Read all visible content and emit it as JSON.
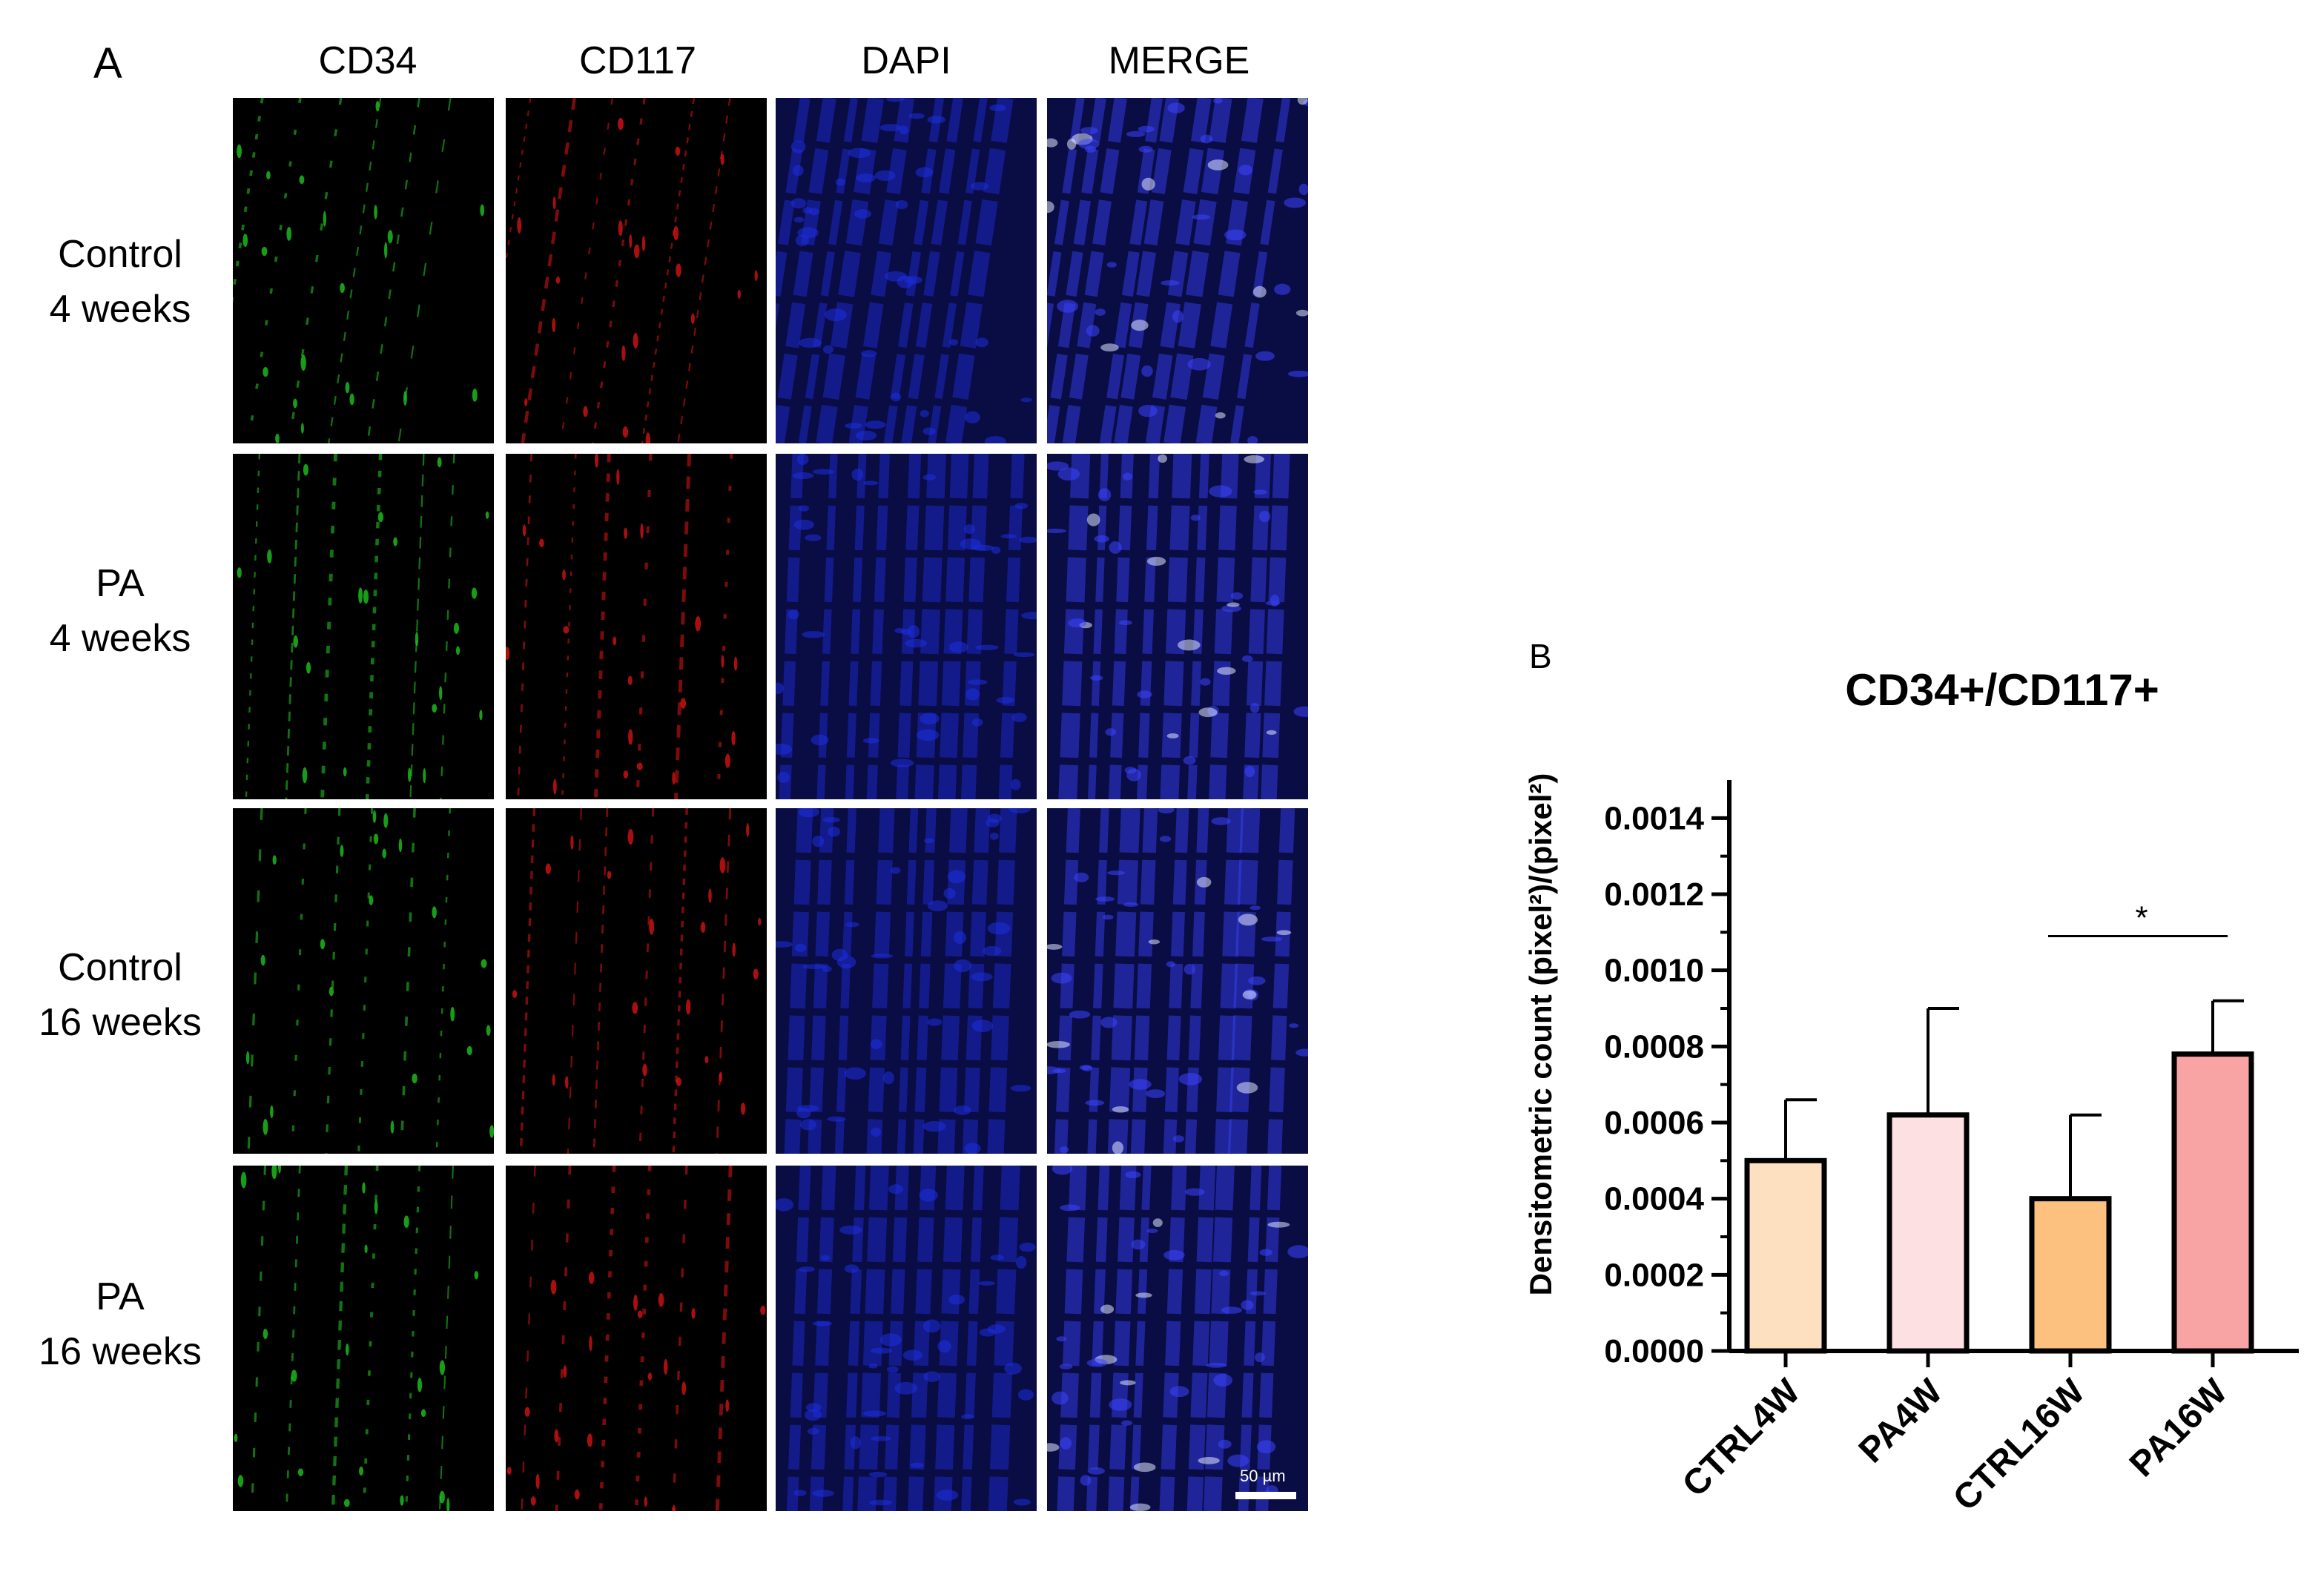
{
  "panel_a": {
    "letter": "A",
    "columns": [
      "CD34",
      "CD117",
      "DAPI",
      "MERGE"
    ],
    "rows": [
      {
        "line1": "Control",
        "line2": "4 weeks"
      },
      {
        "line1": "PA",
        "line2": "4 weeks"
      },
      {
        "line1": "Control",
        "line2": "16 weeks"
      },
      {
        "line1": "PA",
        "line2": "16 weeks"
      }
    ],
    "scale_bar": "50 µm",
    "channel_colors": {
      "CD34": "#1fd11f",
      "CD117": "#e11414",
      "DAPI": "#1e2ee0",
      "MERGE": "#3a44ff"
    }
  },
  "panel_b": {
    "letter": "B"
  },
  "chart_data": {
    "type": "bar",
    "title": "CD34+/CD117+",
    "ylabel": "Densitometric count (pixel²)/(pixel²)",
    "xlabel": "",
    "categories": [
      "CTRL4W",
      "PA4W",
      "CTRL16W",
      "PA16W"
    ],
    "values": [
      0.0005,
      0.00062,
      0.0004,
      0.00078
    ],
    "error_upper": [
      0.00066,
      0.0009,
      0.00062,
      0.00092
    ],
    "colors": [
      "#fde0c0",
      "#fde0e2",
      "#fcc07f",
      "#f9a4a4"
    ],
    "ylim": [
      0,
      0.0015
    ],
    "yticks": [
      "0.0000",
      "0.0002",
      "0.0004",
      "0.0006",
      "0.0008",
      "0.0010",
      "0.0012",
      "0.0014"
    ],
    "ytick_values": [
      0,
      0.0002,
      0.0004,
      0.0006,
      0.0008,
      0.001,
      0.0012,
      0.0014
    ],
    "significance": {
      "from": 2,
      "to": 3,
      "label": "*"
    }
  }
}
